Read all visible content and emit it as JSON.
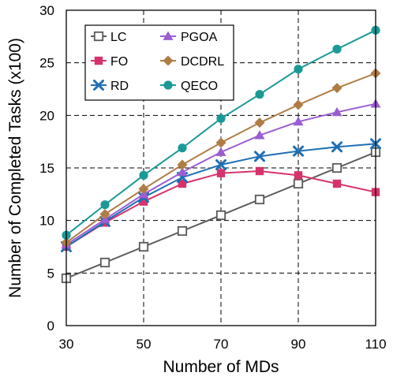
{
  "chart_data": {
    "type": "line",
    "xlabel": "Number of MDs",
    "ylabel": "Number of Completed Tasks (x100)",
    "xlim": [
      30,
      110
    ],
    "ylim": [
      0,
      30
    ],
    "x_ticks": [
      30,
      50,
      70,
      90,
      110
    ],
    "y_ticks": [
      0,
      5,
      10,
      15,
      20,
      25,
      30
    ],
    "x_tick_labels": [
      "30",
      "50",
      "70",
      "90",
      "110"
    ],
    "y_tick_labels": [
      "0",
      "5",
      "10",
      "15",
      "20",
      "25",
      "30"
    ],
    "grid": "dashed at major ticks",
    "legend_position": "top-left, two columns",
    "x": [
      30,
      40,
      50,
      60,
      70,
      80,
      90,
      100,
      110
    ],
    "series": [
      {
        "name": "LC",
        "marker": "square-open",
        "color": "#595959",
        "values": [
          4.5,
          6.0,
          7.5,
          9.0,
          10.5,
          12.0,
          13.5,
          15.0,
          16.5
        ]
      },
      {
        "name": "FO",
        "marker": "square-filled",
        "color": "#d6336c",
        "values": [
          7.5,
          9.8,
          11.8,
          13.5,
          14.5,
          14.7,
          14.3,
          13.5,
          12.7
        ]
      },
      {
        "name": "RD",
        "marker": "x",
        "color": "#1f6fb5",
        "values": [
          7.5,
          9.9,
          12.2,
          14.1,
          15.3,
          16.1,
          16.6,
          17.0,
          17.3
        ]
      },
      {
        "name": "PGOA",
        "marker": "triangle",
        "color": "#9a5ed1",
        "values": [
          7.7,
          10.1,
          12.5,
          14.6,
          16.5,
          18.1,
          19.4,
          20.3,
          21.1
        ]
      },
      {
        "name": "DCDRL",
        "marker": "diamond",
        "color": "#b07c45",
        "values": [
          7.9,
          10.6,
          13.0,
          15.3,
          17.4,
          19.3,
          21.0,
          22.6,
          24.0
        ]
      },
      {
        "name": "QECO",
        "marker": "circle",
        "color": "#1a9997",
        "values": [
          8.6,
          11.5,
          14.3,
          16.9,
          19.7,
          22.0,
          24.4,
          26.3,
          28.1
        ]
      }
    ]
  }
}
